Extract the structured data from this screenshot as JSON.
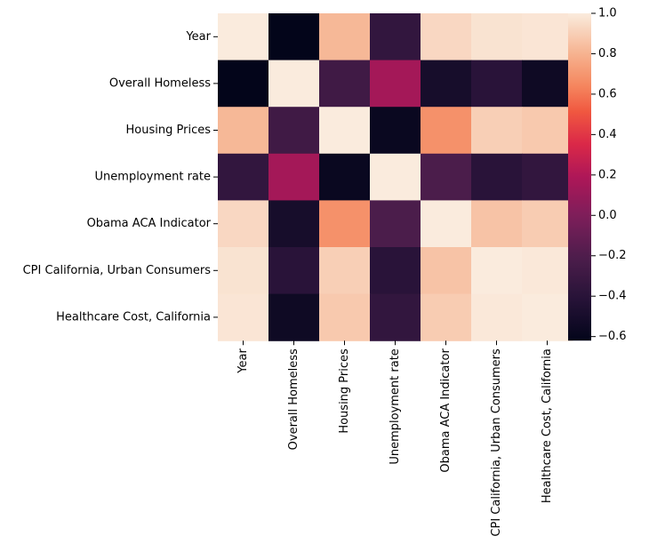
{
  "chart_data": {
    "type": "heatmap",
    "rows": [
      "Year",
      "Overall Homeless",
      "Housing Prices",
      "Unemployment rate",
      "Obama ACA Indicator",
      "CPI California, Urban Consumers",
      "Healthcare Cost, California"
    ],
    "columns": [
      "Year",
      "Overall Homeless",
      "Housing Prices",
      "Unemployment rate",
      "Obama ACA Indicator",
      "CPI California, Urban Consumers",
      "Healthcare Cost, California"
    ],
    "values": [
      [
        1.0,
        -0.62,
        0.82,
        -0.35,
        0.93,
        0.97,
        0.98
      ],
      [
        -0.62,
        1.0,
        -0.28,
        0.15,
        -0.5,
        -0.4,
        -0.55
      ],
      [
        0.82,
        -0.28,
        1.0,
        -0.58,
        0.68,
        0.9,
        0.88
      ],
      [
        -0.35,
        0.15,
        -0.58,
        1.0,
        -0.22,
        -0.4,
        -0.35
      ],
      [
        0.93,
        -0.5,
        0.68,
        -0.22,
        1.0,
        0.86,
        0.89
      ],
      [
        0.97,
        -0.4,
        0.9,
        -0.4,
        0.86,
        1.0,
        0.99
      ],
      [
        0.98,
        -0.55,
        0.88,
        -0.35,
        0.89,
        0.99,
        1.0
      ]
    ],
    "colormap": "rocket",
    "colorbar": {
      "range": [
        -0.62,
        1.0
      ],
      "ticks": [
        "−0.6",
        "−0.4",
        "−0.2",
        "0.0",
        "0.2",
        "0.4",
        "0.6",
        "0.8",
        "1.0"
      ]
    },
    "title": "",
    "xlabel": "",
    "ylabel": ""
  }
}
